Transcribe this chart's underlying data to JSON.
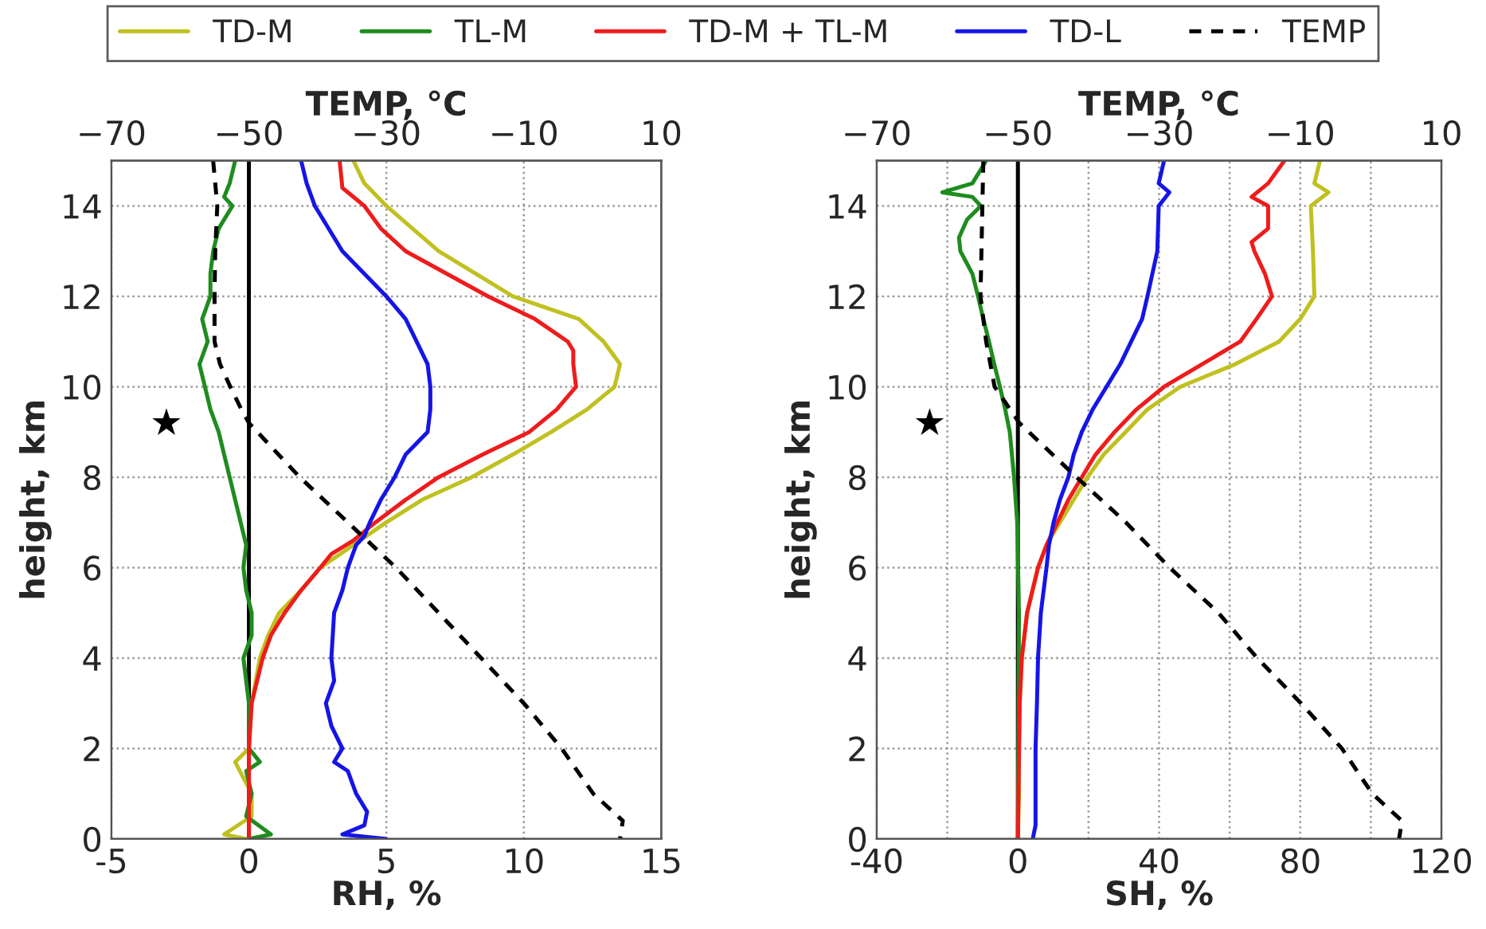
{
  "chart_data": [
    {
      "type": "line",
      "xlabel": "RH, %",
      "ylabel": "height, km",
      "x2label": "TEMP, °C",
      "xlim": [
        -5,
        15
      ],
      "xticks": [
        -5,
        0,
        5,
        10,
        15
      ],
      "x2lim": [
        -70,
        10
      ],
      "x2ticks": [
        {
          "value": -70,
          "label": "−70"
        },
        {
          "value": -50,
          "label": "−50"
        },
        {
          "value": -30,
          "label": "−30"
        },
        {
          "value": -10,
          "label": "−10"
        },
        10
      ],
      "ylim": [
        0,
        15
      ],
      "yticks": [
        0,
        2,
        4,
        6,
        8,
        10,
        12,
        14
      ],
      "grid": true,
      "legend": "top",
      "line_style": "solid",
      "marker": "none",
      "ref_lines": [
        {
          "axis": "x",
          "value": 0,
          "color": "#000000"
        }
      ],
      "series": [
        {
          "name": "TD-M",
          "color": "#c0c020",
          "values": [
            15,
            14.5,
            14,
            13,
            12,
            11.5,
            11,
            10.5,
            10,
            9.5,
            9,
            8.5,
            8,
            7.5,
            7,
            6.5,
            6,
            5.5,
            5,
            4.5,
            4,
            3,
            2,
            1.7,
            1,
            0.5,
            0.1,
            0
          ],
          "x": [
            3.8,
            4.2,
            5.0,
            6.9,
            9.6,
            12.0,
            12.9,
            13.5,
            13.3,
            12.3,
            11.0,
            9.6,
            8.1,
            6.3,
            5.0,
            3.8,
            2.6,
            1.9,
            1.1,
            0.7,
            0.4,
            0.1,
            0.0,
            -0.5,
            0.1,
            0.1,
            -0.9,
            -0.1
          ]
        },
        {
          "name": "TL-M",
          "color": "#1e8c1e",
          "values": [
            15,
            14.5,
            14.2,
            14,
            13.5,
            13,
            12.5,
            12,
            11.5,
            11,
            10.5,
            10,
            9.5,
            9,
            8.5,
            8,
            7.5,
            7,
            6.5,
            6,
            5.5,
            5,
            4.5,
            4,
            3,
            2,
            1.7,
            1.5,
            1,
            0.5,
            0.1,
            0
          ],
          "x": [
            -0.5,
            -0.7,
            -0.9,
            -0.6,
            -1.1,
            -1.3,
            -1.4,
            -1.4,
            -1.7,
            -1.5,
            -1.8,
            -1.6,
            -1.4,
            -1.1,
            -0.9,
            -0.7,
            -0.5,
            -0.3,
            -0.1,
            -0.2,
            -0.1,
            0.1,
            0.1,
            -0.2,
            0.0,
            0.0,
            0.4,
            -0.1,
            0.1,
            -0.1,
            0.8,
            0.0
          ]
        },
        {
          "name": "TD-M + TL-M",
          "color": "#ee1c1c",
          "values": [
            15,
            14.4,
            14,
            13.5,
            13,
            12,
            11.5,
            11,
            10.8,
            10.5,
            10,
            9.5,
            9,
            8.5,
            8,
            7.5,
            7,
            6.6,
            6.3,
            6,
            5.5,
            5,
            4.5,
            4,
            3.5,
            3,
            2,
            0
          ],
          "x": [
            3.3,
            3.4,
            4.2,
            4.8,
            5.7,
            8.7,
            10.4,
            11.6,
            11.8,
            11.8,
            11.9,
            11.2,
            10.2,
            8.5,
            6.9,
            5.7,
            4.6,
            3.8,
            3.0,
            2.6,
            1.9,
            1.3,
            0.8,
            0.5,
            0.3,
            0.1,
            0.0,
            0.0
          ]
        },
        {
          "name": "TD-L",
          "color": "#1515e6",
          "values": [
            15,
            14.5,
            14,
            13,
            12,
            11.5,
            11,
            10.5,
            10,
            9.5,
            9,
            8.5,
            8,
            7.5,
            7,
            6.7,
            6.5,
            6,
            5.5,
            5,
            4,
            3.5,
            3,
            2.5,
            2,
            1.7,
            1.5,
            1,
            0.6,
            0.3,
            0.1,
            0
          ],
          "x": [
            1.9,
            2.1,
            2.4,
            3.4,
            5.0,
            5.7,
            6.1,
            6.5,
            6.6,
            6.6,
            6.5,
            5.7,
            5.3,
            4.8,
            4.4,
            4.2,
            3.9,
            3.6,
            3.4,
            3.1,
            3.0,
            3.1,
            2.8,
            3.0,
            3.4,
            3.1,
            3.6,
            3.9,
            4.3,
            4.2,
            3.4,
            5.0
          ]
        },
        {
          "name": "TEMP",
          "color": "#000000",
          "axis": "x2",
          "line_style": "dashed",
          "values": [
            15,
            14,
            13,
            12,
            11,
            10.5,
            10,
            9.5,
            9.2,
            8,
            7,
            6,
            5,
            4,
            3,
            2,
            1,
            0.4,
            0
          ],
          "x": [
            -55.2,
            -54.6,
            -54.9,
            -55.0,
            -55.0,
            -54.2,
            -52.7,
            -51.1,
            -50.0,
            -42.6,
            -35.6,
            -28.6,
            -22.4,
            -16.2,
            -10.0,
            -4.5,
            0.1,
            4.4,
            4.0
          ]
        },
        {
          "type": "scatter",
          "marker": "star",
          "color": "#000000",
          "x": [
            -3
          ],
          "values": [
            9.2
          ]
        }
      ]
    },
    {
      "type": "line",
      "xlabel": "SH, %",
      "ylabel": "height, km",
      "x2label": "TEMP, °C",
      "xlim": [
        -40,
        120
      ],
      "xticks": [
        -40,
        {
          "value": -20,
          "label": null
        },
        0,
        {
          "value": 20,
          "label": null
        },
        40,
        {
          "value": 60,
          "label": null
        },
        80,
        {
          "value": 100,
          "label": null
        },
        120
      ],
      "x2lim": [
        -70,
        10
      ],
      "x2ticks": [
        {
          "value": -70,
          "label": "−70"
        },
        {
          "value": -50,
          "label": "−50"
        },
        {
          "value": -30,
          "label": "−30"
        },
        {
          "value": -10,
          "label": "−10"
        },
        10
      ],
      "ylim": [
        0,
        15
      ],
      "yticks": [
        0,
        2,
        4,
        6,
        8,
        10,
        12,
        14
      ],
      "grid": true,
      "line_style": "solid",
      "marker": "none",
      "ref_lines": [
        {
          "axis": "x",
          "value": 0,
          "color": "#000000"
        }
      ],
      "series": [
        {
          "color": "#c0c020",
          "values": [
            15,
            14.5,
            14.3,
            14,
            13,
            12,
            11.5,
            11,
            10.5,
            10,
            9.5,
            9,
            8.5,
            8,
            7.5,
            7,
            6.5,
            6,
            5,
            4,
            3,
            2,
            1,
            0
          ],
          "x": [
            85.6,
            84,
            88,
            83,
            83.6,
            84,
            80,
            74,
            61.6,
            46,
            36.7,
            30.5,
            24.3,
            19.7,
            15.8,
            11.9,
            8.1,
            5.7,
            2.6,
            1.1,
            0.5,
            0.3,
            0.3,
            0
          ]
        },
        {
          "color": "#1e8c1e",
          "values": [
            15,
            14.5,
            14.3,
            14.2,
            14,
            13.7,
            13.3,
            13,
            12.5,
            12,
            11.5,
            11,
            10.5,
            10,
            9.5,
            9,
            8,
            7,
            5,
            0
          ],
          "x": [
            -9,
            -12.9,
            -21.4,
            -12.9,
            -10.5,
            -14.4,
            -16.7,
            -16.3,
            -12.9,
            -11.3,
            -9.8,
            -8.2,
            -6.7,
            -5.1,
            -3.6,
            -2.3,
            -1.1,
            -0.2,
            0.3,
            0
          ]
        },
        {
          "color": "#ee1c1c",
          "values": [
            15,
            14.5,
            14.2,
            14,
            13.5,
            13.2,
            13,
            12.5,
            12,
            11.5,
            11,
            10.5,
            10,
            9.5,
            9,
            8.5,
            8,
            7.5,
            7,
            6.5,
            6,
            5,
            4,
            3,
            0
          ],
          "x": [
            75.5,
            70.9,
            66.2,
            70.9,
            70.9,
            66.2,
            67,
            70,
            72,
            67.6,
            63,
            52.2,
            41.4,
            33.6,
            27.4,
            22,
            18.1,
            14.3,
            11.2,
            8.1,
            5.7,
            2.6,
            1.1,
            0.5,
            0
          ]
        },
        {
          "color": "#1515e6",
          "values": [
            15,
            14.5,
            14.3,
            14,
            13,
            12,
            11.5,
            11,
            10.5,
            10,
            9.5,
            9,
            8.5,
            8,
            7.5,
            7,
            6.5,
            6,
            5,
            4,
            3,
            2,
            1,
            0.3,
            0
          ],
          "x": [
            41.4,
            39.9,
            42.9,
            39.9,
            39.5,
            36.7,
            35.2,
            32.1,
            29,
            25.1,
            21.2,
            18.1,
            15.8,
            14.3,
            11.9,
            10.1,
            8.8,
            8.1,
            6.5,
            5.7,
            5.4,
            5.0,
            5.0,
            5.0,
            4.2
          ]
        },
        {
          "color": "#000000",
          "axis": "x2",
          "line_style": "dashed",
          "values": [
            15,
            12,
            11,
            10,
            9.2,
            8,
            7,
            6,
            5,
            4,
            3,
            2,
            1,
            0.4,
            0
          ],
          "x": [
            -54.9,
            -55.3,
            -54.5,
            -53.3,
            -49.8,
            -41.7,
            -34.7,
            -28.5,
            -21.6,
            -16.1,
            -9.9,
            -4.1,
            0.2,
            4.4,
            4.0
          ]
        },
        {
          "type": "scatter",
          "marker": "star",
          "color": "#000000",
          "x": [
            -25
          ],
          "values": [
            9.2
          ]
        }
      ]
    }
  ]
}
